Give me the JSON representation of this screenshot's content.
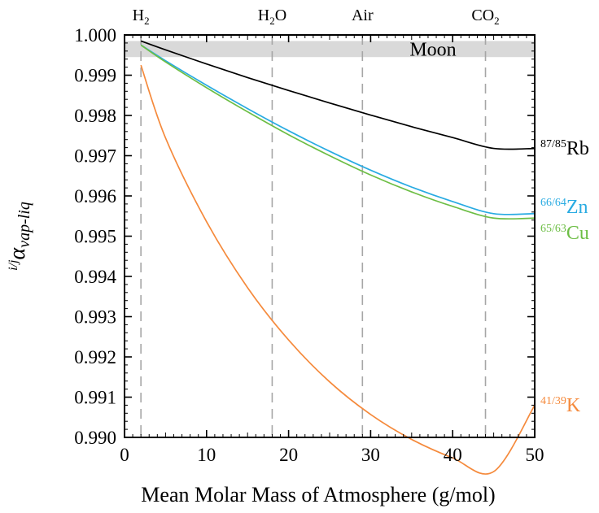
{
  "chart_data": {
    "type": "line",
    "xlabel": "Mean Molar Mass of Atmosphere (g/mol)",
    "ylabel": {
      "prefix": "i/j",
      "symbol": "α",
      "subscript": "vap-liq"
    },
    "xlim": [
      0,
      50
    ],
    "ylim": [
      0.99,
      1.0
    ],
    "xticks": [
      0,
      10,
      20,
      30,
      40,
      50
    ],
    "xtick_labels": [
      "0",
      "10",
      "20",
      "30",
      "40",
      "50"
    ],
    "yticks": [
      0.99,
      0.991,
      0.992,
      0.993,
      0.994,
      0.995,
      0.996,
      0.997,
      0.998,
      0.999,
      1.0
    ],
    "ytick_labels": [
      "0.990",
      "0.991",
      "0.992",
      "0.993",
      "0.994",
      "0.995",
      "0.996",
      "0.997",
      "0.998",
      "0.999",
      "1.000"
    ],
    "grid": false,
    "moon_band": {
      "label": "Moon",
      "y_range": [
        0.99945,
        0.99985
      ],
      "color": "#d9d9d9"
    },
    "reference_lines": [
      {
        "x": 2,
        "label_main": "H",
        "label_sub": "2",
        "label_tail": ""
      },
      {
        "x": 18,
        "label_main": "H",
        "label_sub": "2",
        "label_tail": "O"
      },
      {
        "x": 29,
        "label_main": "Air",
        "label_sub": "",
        "label_tail": ""
      },
      {
        "x": 44,
        "label_main": "CO",
        "label_sub": "2",
        "label_tail": ""
      }
    ],
    "series": [
      {
        "iso_mass": "87/85",
        "element": "Rb",
        "color": "#000000",
        "x": [
          2,
          5,
          10,
          15,
          20,
          25,
          30,
          35,
          40,
          45,
          50
        ],
        "values": [
          0.99985,
          0.99963,
          0.99928,
          0.99894,
          0.99862,
          0.99831,
          0.99801,
          0.99772,
          0.99745,
          0.99718,
          0.99718
        ]
      },
      {
        "iso_mass": "66/64",
        "element": "Zn",
        "color": "#29abe2",
        "x": [
          2,
          5,
          10,
          15,
          20,
          25,
          30,
          35,
          40,
          45,
          50
        ],
        "values": [
          0.99975,
          0.99936,
          0.99875,
          0.99817,
          0.99762,
          0.99711,
          0.99664,
          0.99622,
          0.99586,
          0.99556,
          0.99556
        ]
      },
      {
        "iso_mass": "65/63",
        "element": "Cu",
        "color": "#6dbe45",
        "x": [
          2,
          5,
          10,
          15,
          20,
          25,
          30,
          35,
          40,
          45,
          50
        ],
        "values": [
          0.99975,
          0.99933,
          0.99869,
          0.99809,
          0.99752,
          0.997,
          0.99652,
          0.9961,
          0.99574,
          0.99545,
          0.99545
        ]
      },
      {
        "iso_mass": "41/39",
        "element": "K",
        "color": "#f58a3c",
        "x": [
          2,
          5,
          10,
          15,
          20,
          25,
          30,
          35,
          40,
          45,
          50
        ],
        "values": [
          0.99925,
          0.99744,
          0.99536,
          0.99372,
          0.99242,
          0.99138,
          0.99057,
          0.98995,
          0.98949,
          0.98915,
          0.9908
        ]
      }
    ]
  }
}
